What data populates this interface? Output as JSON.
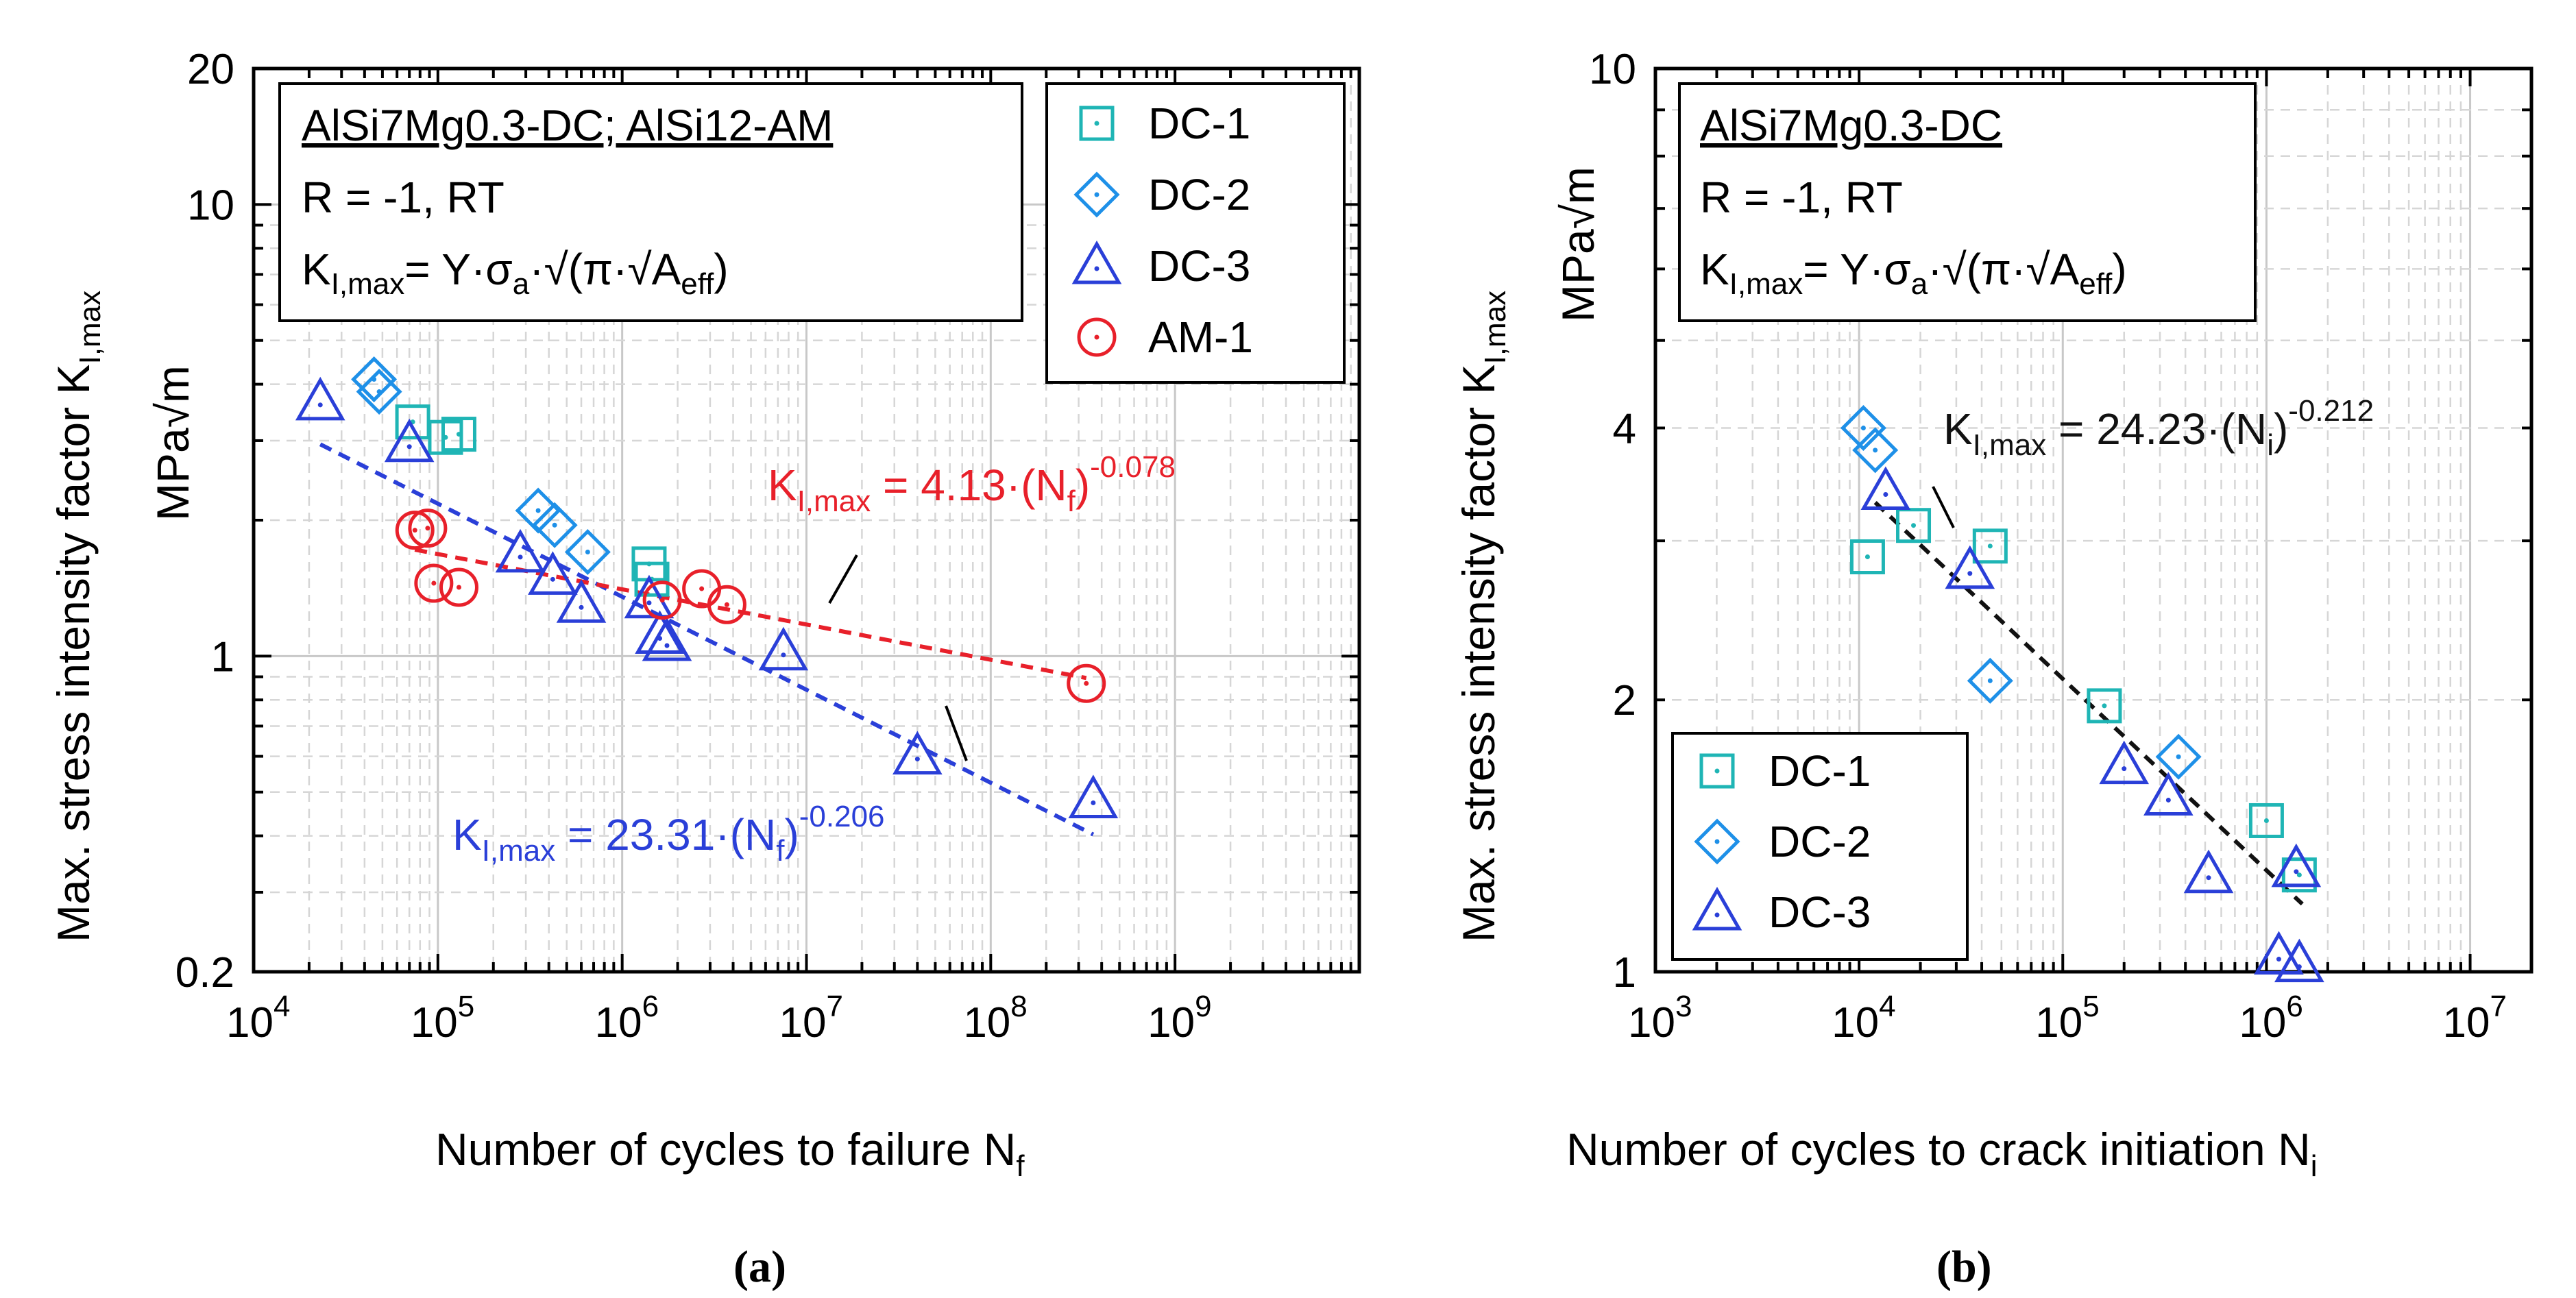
{
  "colors": {
    "DC-1": "#1fb5b5",
    "DC-2": "#1e90e8",
    "DC-3": "#2a3fd8",
    "AM-1": "#e8202a",
    "fit_black": "#111111"
  },
  "chart_data": [
    {
      "id": "a",
      "type": "scatter",
      "caption": "(a)",
      "xscale": "log",
      "yscale": "log",
      "xlim": [
        10000,
        10000000000
      ],
      "ylim": [
        0.2,
        20
      ],
      "xlabel": "Number of cycles to failure N",
      "xlabel_sub": "f",
      "ylabel": "Max. stress intensity factor K",
      "ylabel_sub": "I,max",
      "yunit": "MPa√m",
      "xticks": [
        {
          "v": 10000,
          "base": "10",
          "exp": "4"
        },
        {
          "v": 100000,
          "base": "10",
          "exp": "5"
        },
        {
          "v": 1000000,
          "base": "10",
          "exp": "6"
        },
        {
          "v": 10000000,
          "base": "10",
          "exp": "7"
        },
        {
          "v": 100000000,
          "base": "10",
          "exp": "8"
        },
        {
          "v": 1000000000,
          "base": "10",
          "exp": "9"
        }
      ],
      "yticks": [
        {
          "v": 0.2,
          "label": "0.2"
        },
        {
          "v": 1,
          "label": "1"
        },
        {
          "v": 10,
          "label": "10"
        },
        {
          "v": 20,
          "label": "20"
        }
      ],
      "info_box": {
        "line1": "AlSi7Mg0.3-DC; AlSi12-AM",
        "line2": "R = -1, RT",
        "line3_k": "K",
        "line3_sub": "I,max",
        "line3_eq": "= Y·σ",
        "line3_sub2": "a",
        "line3_rest": "·√(π·√A",
        "line3_sub3": "eff",
        "line3_end": ")"
      },
      "legend": [
        "DC-1",
        "DC-2",
        "DC-3",
        "AM-1"
      ],
      "series": [
        {
          "name": "DC-1",
          "marker": "square",
          "points": [
            [
              73000,
              3.3
            ],
            [
              110000,
              3.05
            ],
            [
              130000,
              3.1
            ],
            [
              1400000,
              1.6
            ],
            [
              1450000,
              1.48
            ]
          ]
        },
        {
          "name": "DC-2",
          "marker": "diamond",
          "points": [
            [
              45000,
              4.1
            ],
            [
              48000,
              3.85
            ],
            [
              350000,
              2.1
            ],
            [
              430000,
              1.95
            ],
            [
              650000,
              1.7
            ]
          ]
        },
        {
          "name": "DC-3",
          "marker": "triangle",
          "points": [
            [
              23000,
              3.65
            ],
            [
              70000,
              2.95
            ],
            [
              280000,
              1.68
            ],
            [
              420000,
              1.5
            ],
            [
              600000,
              1.3
            ],
            [
              1400000,
              1.33
            ],
            [
              1600000,
              1.11
            ],
            [
              1750000,
              1.07
            ],
            [
              7500000,
              1.02
            ],
            [
              40000000,
              0.6
            ],
            [
              360000000,
              0.48
            ]
          ]
        },
        {
          "name": "AM-1",
          "marker": "circle",
          "points": [
            [
              75000,
              1.9
            ],
            [
              88000,
              1.92
            ],
            [
              95000,
              1.45
            ],
            [
              130000,
              1.42
            ],
            [
              1650000,
              1.33
            ],
            [
              2700000,
              1.41
            ],
            [
              3700000,
              1.3
            ],
            [
              330000000,
              0.87
            ]
          ]
        }
      ],
      "fits": [
        {
          "series": "DC-3",
          "color_key": "DC-3",
          "coef": 23.31,
          "exp": -0.206,
          "x_range": [
            23000,
            360000000
          ],
          "label_k": "K",
          "label_sub": "I,max",
          "label_eq": " = 23.31·(N",
          "label_nsub": "f",
          "label_close": ")",
          "label_exp": "-0.206"
        },
        {
          "series": "AM-1",
          "color_key": "AM-1",
          "coef": 4.13,
          "exp": -0.078,
          "x_range": [
            75000,
            330000000
          ],
          "label_k": "K",
          "label_sub": "I,max",
          "label_eq": " = 4.13·(N",
          "label_nsub": "f",
          "label_close": ")",
          "label_exp": "-0.078"
        }
      ]
    },
    {
      "id": "b",
      "type": "scatter",
      "caption": "(b)",
      "xscale": "log",
      "yscale": "log",
      "xlim": [
        1000,
        20000000
      ],
      "ylim": [
        1,
        10
      ],
      "xlabel": "Number of cycles to crack initiation N",
      "xlabel_sub": "i",
      "ylabel": "Max. stress intensity factor K",
      "ylabel_sub": "I,max",
      "yunit": "MPa√m",
      "xticks": [
        {
          "v": 1000,
          "base": "10",
          "exp": "3"
        },
        {
          "v": 10000,
          "base": "10",
          "exp": "4"
        },
        {
          "v": 100000,
          "base": "10",
          "exp": "5"
        },
        {
          "v": 1000000,
          "base": "10",
          "exp": "6"
        },
        {
          "v": 10000000,
          "base": "10",
          "exp": "7"
        }
      ],
      "yticks": [
        {
          "v": 1,
          "label": "1"
        },
        {
          "v": 2,
          "label": "2"
        },
        {
          "v": 4,
          "label": "4"
        },
        {
          "v": 10,
          "label": "10"
        }
      ],
      "info_box": {
        "line1": "AlSi7Mg0.3-DC",
        "line2": "R = -1, RT",
        "line3_k": "K",
        "line3_sub": "I,max",
        "line3_eq": "= Y·σ",
        "line3_sub2": "a",
        "line3_rest": "·√(π·√A",
        "line3_sub3": "eff",
        "line3_end": ")"
      },
      "legend": [
        "DC-1",
        "DC-2",
        "DC-3"
      ],
      "series": [
        {
          "name": "DC-1",
          "marker": "square",
          "points": [
            [
              11000,
              2.88
            ],
            [
              18500,
              3.12
            ],
            [
              44000,
              2.96
            ],
            [
              160000,
              1.97
            ],
            [
              1000000,
              1.47
            ],
            [
              1450000,
              1.28
            ]
          ]
        },
        {
          "name": "DC-2",
          "marker": "diamond",
          "points": [
            [
              10500,
              4.0
            ],
            [
              12000,
              3.78
            ],
            [
              44000,
              2.1
            ],
            [
              370000,
              1.73
            ]
          ]
        },
        {
          "name": "DC-3",
          "marker": "triangle",
          "points": [
            [
              13500,
              3.4
            ],
            [
              35000,
              2.78
            ],
            [
              200000,
              1.69
            ],
            [
              330000,
              1.56
            ],
            [
              520000,
              1.28
            ],
            [
              1400000,
              1.3
            ],
            [
              1150000,
              1.04
            ],
            [
              1450000,
              1.02
            ]
          ]
        }
      ],
      "fits": [
        {
          "series": "all",
          "color_key": "fit_black",
          "coef": 24.23,
          "exp": -0.212,
          "x_range": [
            12000,
            1500000
          ],
          "label_k": "K",
          "label_sub": "I,max",
          "label_eq": " = 24.23·(N",
          "label_nsub": "i",
          "label_close": ")",
          "label_exp": "-0.212"
        }
      ]
    }
  ]
}
